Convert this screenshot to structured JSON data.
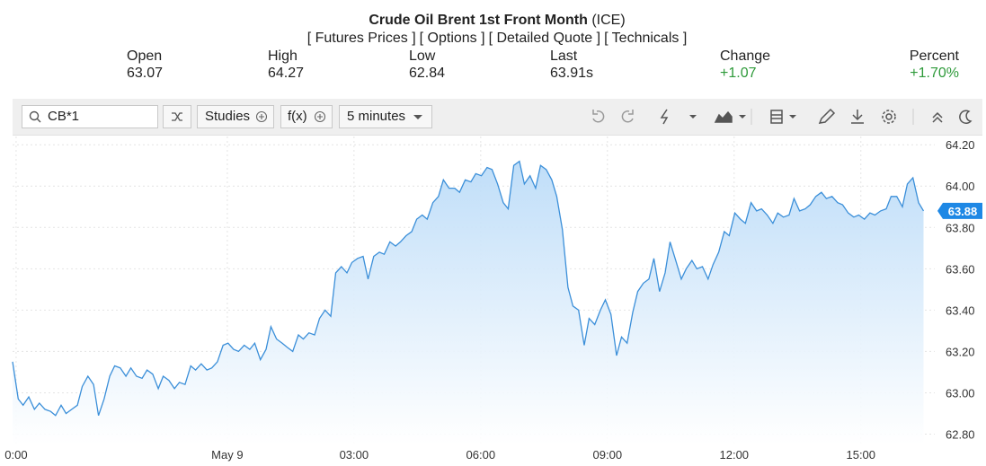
{
  "header": {
    "title": "Crude Oil Brent 1st Front Month",
    "exchange": "(ICE)",
    "links": [
      "[ Futures Prices ]",
      "[ Options ]",
      "[ Detailed Quote ]",
      "[ Technicals ]"
    ]
  },
  "quote": [
    {
      "label": "Open",
      "value": 63.07
    },
    {
      "label": "High",
      "value": 64.27
    },
    {
      "label": "Low",
      "value": 62.84
    },
    {
      "label": "Last",
      "value": "63.91s"
    },
    {
      "label": "Change",
      "value": "+1.07"
    },
    {
      "label": "Percent",
      "value": "+1.70%"
    }
  ],
  "toolbar": {
    "search": "CB*1",
    "studies": "Studies",
    "function": "f(x)",
    "interval": "5 minutes"
  },
  "chart_data": {
    "type": "area",
    "color": "#3b8fd9",
    "xlim": [
      -305,
      1005
    ],
    "ylim": [
      62.75,
      64.24
    ],
    "xticks": [
      {
        "value": -300,
        "label": "0:00"
      },
      {
        "value": 0,
        "label": "May 9"
      },
      {
        "value": 180,
        "label": "03:00"
      },
      {
        "value": 360,
        "label": "06:00"
      },
      {
        "value": 540,
        "label": "09:00"
      },
      {
        "value": 720,
        "label": "12:00"
      },
      {
        "value": 900,
        "label": "15:00"
      }
    ],
    "yticks": [
      {
        "value": 62.8,
        "label": "62.80"
      },
      {
        "value": 63.0,
        "label": "63.00"
      },
      {
        "value": 63.2,
        "label": "63.20"
      },
      {
        "value": 63.4,
        "label": "63.40"
      },
      {
        "value": 63.6,
        "label": "63.60"
      },
      {
        "value": 63.8,
        "label": "63.80"
      },
      {
        "value": 64.0,
        "label": "64.00"
      },
      {
        "value": 64.2,
        "label": "64.20"
      }
    ],
    "grid": true,
    "last_price_label": 63.88,
    "x": [
      -305,
      -297,
      -290,
      -282,
      -274,
      -267,
      -259,
      -251,
      -244,
      -236,
      -229,
      -221,
      -213,
      -206,
      -198,
      -190,
      -183,
      -175,
      -167,
      -160,
      -152,
      -144,
      -137,
      -129,
      -121,
      -114,
      -106,
      -98,
      -91,
      -83,
      -75,
      -68,
      -60,
      -52,
      -45,
      -37,
      -29,
      -22,
      -14,
      -6,
      1,
      9,
      16,
      24,
      32,
      39,
      47,
      55,
      62,
      70,
      78,
      85,
      93,
      101,
      108,
      116,
      124,
      131,
      139,
      147,
      154,
      162,
      170,
      177,
      185,
      193,
      200,
      208,
      216,
      223,
      231,
      239,
      246,
      254,
      262,
      269,
      277,
      284,
      292,
      300,
      307,
      315,
      323,
      330,
      338,
      346,
      353,
      361,
      369,
      376,
      384,
      392,
      399,
      407,
      415,
      422,
      430,
      438,
      445,
      453,
      461,
      468,
      476,
      484,
      491,
      499,
      507,
      514,
      522,
      530,
      537,
      545,
      553,
      560,
      568,
      576,
      583,
      591,
      599,
      606,
      614,
      622,
      629,
      637,
      645,
      652,
      660,
      667,
      675,
      683,
      690,
      698,
      706,
      713,
      721,
      729,
      736,
      744,
      752,
      759,
      767,
      775,
      782,
      790,
      798,
      805,
      813,
      821,
      828,
      836,
      844,
      851,
      859,
      867,
      874,
      882,
      890,
      897,
      905,
      913,
      920,
      928,
      936,
      943,
      951,
      959,
      966,
      974,
      982,
      989
    ],
    "values": [
      63.15,
      62.97,
      62.94,
      62.98,
      62.92,
      62.95,
      62.92,
      62.91,
      62.89,
      62.94,
      62.9,
      62.92,
      62.94,
      63.03,
      63.08,
      63.04,
      62.89,
      62.97,
      63.08,
      63.13,
      63.12,
      63.08,
      63.12,
      63.08,
      63.07,
      63.11,
      63.09,
      63.02,
      63.08,
      63.06,
      63.02,
      63.05,
      63.04,
      63.13,
      63.11,
      63.14,
      63.11,
      63.12,
      63.15,
      63.23,
      63.24,
      63.21,
      63.2,
      63.23,
      63.21,
      63.24,
      63.16,
      63.21,
      63.32,
      63.26,
      63.24,
      63.22,
      63.2,
      63.28,
      63.26,
      63.29,
      63.28,
      63.36,
      63.4,
      63.37,
      63.58,
      63.61,
      63.58,
      63.63,
      63.65,
      63.66,
      63.55,
      63.66,
      63.68,
      63.67,
      63.73,
      63.71,
      63.73,
      63.76,
      63.78,
      63.84,
      63.86,
      63.84,
      63.92,
      63.95,
      64.03,
      63.99,
      63.99,
      63.97,
      64.03,
      64.02,
      64.06,
      64.05,
      64.09,
      64.08,
      64.01,
      63.92,
      63.89,
      64.1,
      64.12,
      64.01,
      64.05,
      63.99,
      64.1,
      64.08,
      64.03,
      63.95,
      63.79,
      63.51,
      63.42,
      63.4,
      63.23,
      63.36,
      63.33,
      63.4,
      63.45,
      63.38,
      63.18,
      63.27,
      63.24,
      63.39,
      63.49,
      63.53,
      63.55,
      63.65,
      63.49,
      63.58,
      63.73,
      63.64,
      63.55,
      63.6,
      63.64,
      63.6,
      63.61,
      63.55,
      63.62,
      63.68,
      63.78,
      63.76,
      63.87,
      63.84,
      63.82,
      63.92,
      63.88,
      63.89,
      63.86,
      63.82,
      63.87,
      63.85,
      63.86,
      63.94,
      63.88,
      63.89,
      63.91,
      63.95,
      63.97,
      63.94,
      63.95,
      63.92,
      63.91,
      63.87,
      63.85,
      63.86,
      63.84,
      63.87,
      63.86,
      63.88,
      63.89,
      63.95,
      63.95,
      63.9,
      64.01,
      64.04,
      63.92,
      63.88
    ]
  }
}
